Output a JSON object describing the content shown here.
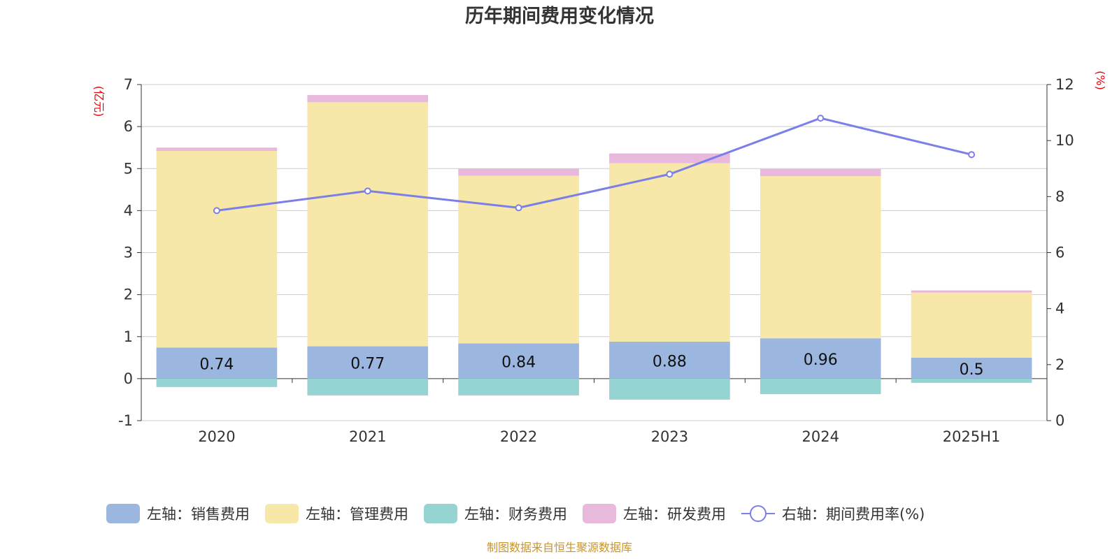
{
  "chart_data": {
    "type": "bar",
    "title": "历年期间费用变化情况",
    "categories": [
      "2020",
      "2021",
      "2022",
      "2023",
      "2024",
      "2025H1"
    ],
    "y_left": {
      "unit": "(亿元)",
      "min": -1,
      "max": 7,
      "ticks": [
        -1,
        0,
        1,
        2,
        3,
        4,
        5,
        6,
        7
      ]
    },
    "y_right": {
      "unit": "(%)",
      "min": 0,
      "max": 12,
      "ticks": [
        0,
        2,
        4,
        6,
        8,
        10,
        12
      ]
    },
    "series": [
      {
        "name": "左轴：销售费用",
        "type": "bar",
        "axis": "left",
        "color": "#9bb7e0",
        "values": [
          0.74,
          0.77,
          0.84,
          0.88,
          0.96,
          0.5
        ],
        "labels": [
          "0.74",
          "0.77",
          "0.84",
          "0.88",
          "0.96",
          "0.5"
        ]
      },
      {
        "name": "左轴：管理费用",
        "type": "bar",
        "axis": "left",
        "color": "#f7e7a9",
        "values": [
          4.68,
          5.81,
          3.99,
          4.25,
          3.86,
          1.55
        ]
      },
      {
        "name": "左轴：财务费用",
        "type": "bar",
        "axis": "left",
        "color": "#96d4d4",
        "values": [
          -0.2,
          -0.4,
          -0.4,
          -0.5,
          -0.37,
          -0.1
        ]
      },
      {
        "name": "左轴：研发费用",
        "type": "bar",
        "axis": "left",
        "color": "#e8b9dc",
        "values": [
          0.08,
          0.17,
          0.17,
          0.23,
          0.17,
          0.05
        ]
      },
      {
        "name": "右轴：期间费用率(%)",
        "type": "line",
        "axis": "right",
        "color": "#7b7fe8",
        "values": [
          7.5,
          8.2,
          7.6,
          8.8,
          10.8,
          9.5
        ]
      }
    ],
    "grid": true,
    "legend_position": "bottom"
  },
  "footer": {
    "source": "制图数据来自恒生聚源数据库"
  }
}
